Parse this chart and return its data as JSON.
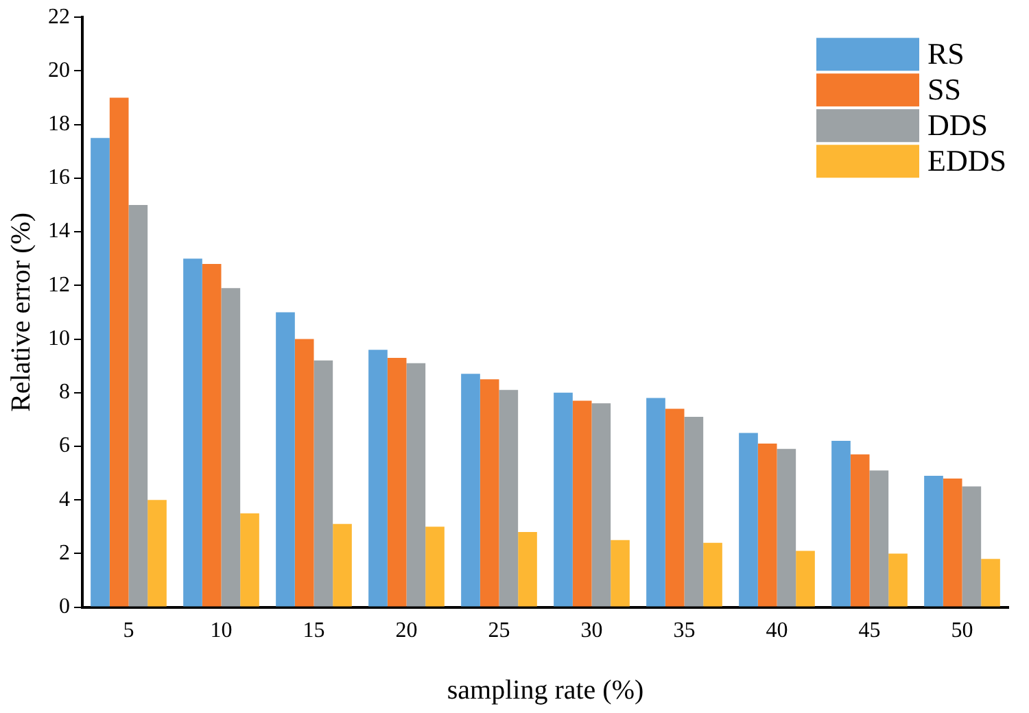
{
  "chart_data": {
    "type": "bar",
    "xlabel": "sampling rate (%)",
    "ylabel": "Relative error (%)",
    "categories": [
      "5",
      "10",
      "15",
      "20",
      "25",
      "30",
      "35",
      "40",
      "45",
      "50"
    ],
    "series": [
      {
        "name": "RS",
        "color": "#5ea3da",
        "values": [
          17.5,
          13,
          11,
          9.6,
          8.7,
          8,
          7.8,
          6.5,
          6.2,
          4.9
        ]
      },
      {
        "name": "SS",
        "color": "#f4792b",
        "values": [
          19,
          12.8,
          10,
          9.3,
          8.5,
          7.7,
          7.4,
          6.1,
          5.7,
          4.8
        ]
      },
      {
        "name": "DDS",
        "color": "#9ca2a5",
        "values": [
          15,
          11.9,
          9.2,
          9.1,
          8.1,
          7.6,
          7.1,
          5.9,
          5.1,
          4.5
        ]
      },
      {
        "name": "EDDS",
        "color": "#fdb733",
        "values": [
          4,
          3.5,
          3.1,
          3,
          2.8,
          2.5,
          2.4,
          2.1,
          2,
          1.8
        ]
      }
    ],
    "ylim": [
      0,
      22
    ],
    "yticks": [
      0,
      2,
      4,
      6,
      8,
      10,
      12,
      14,
      16,
      18,
      20,
      22
    ],
    "grid": false,
    "legend": "top right"
  }
}
